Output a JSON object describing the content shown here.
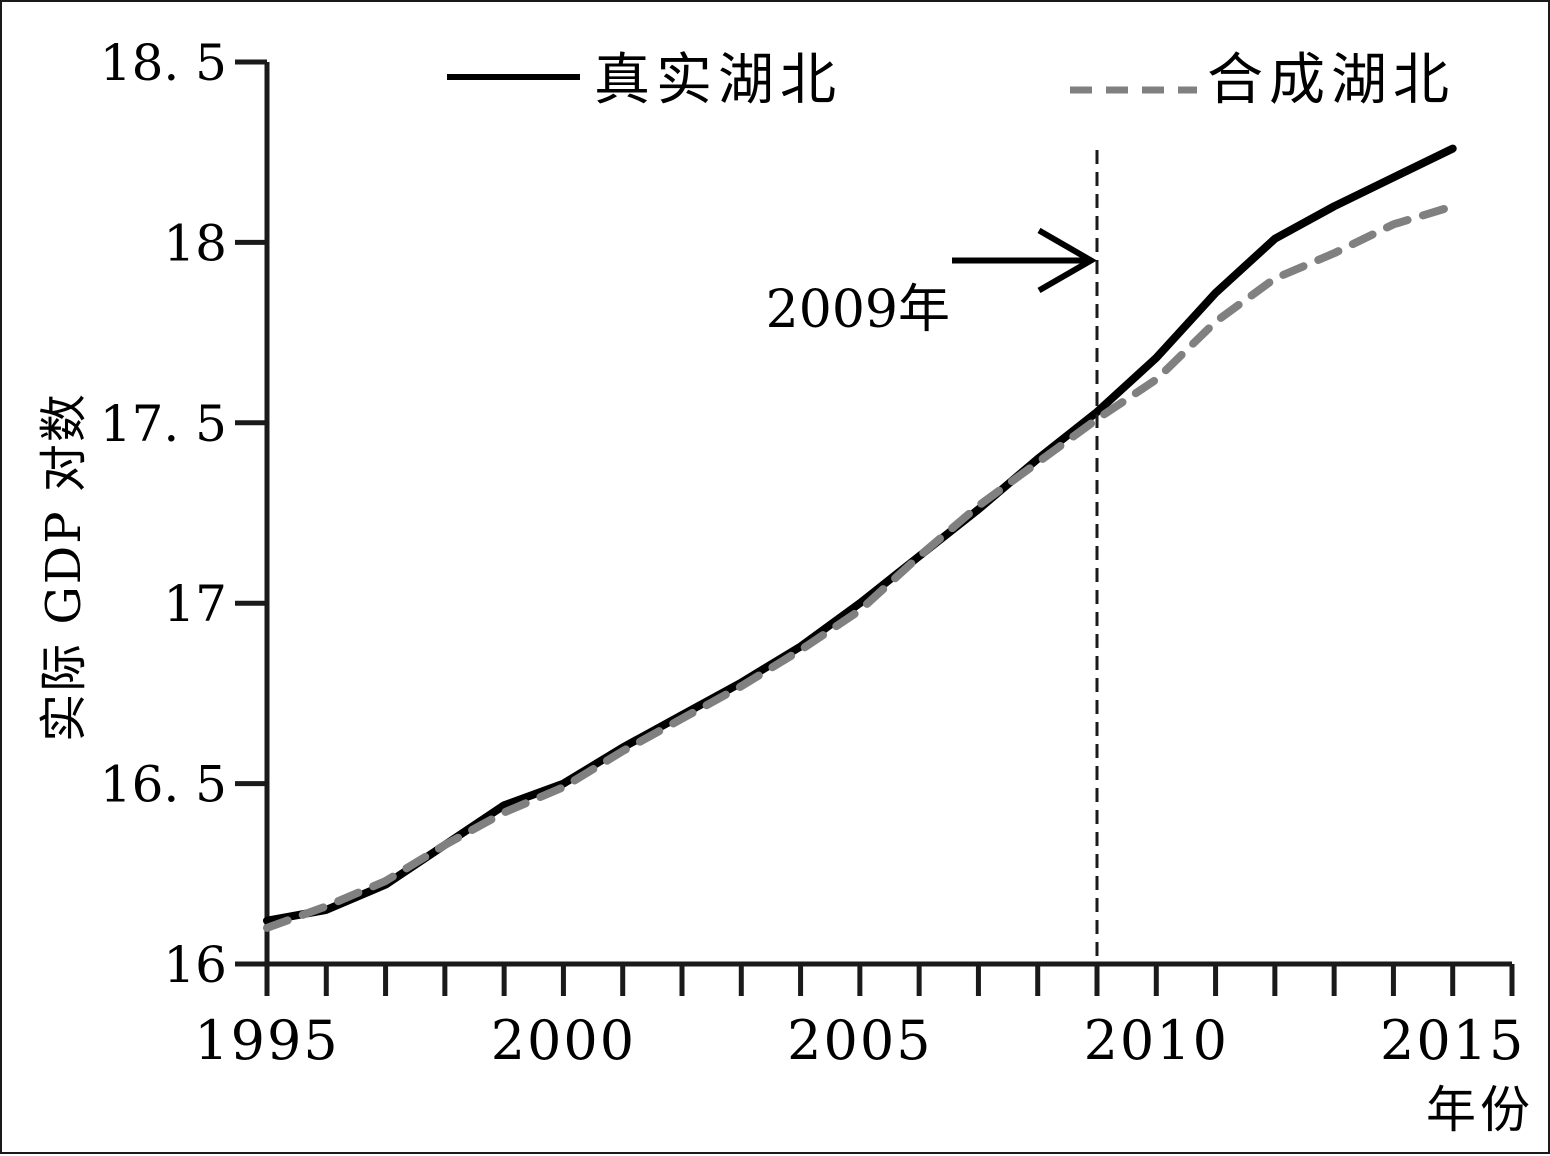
{
  "chart_data": {
    "type": "line",
    "title": "",
    "xlabel": "年份",
    "ylabel": "实际 GDP 对数",
    "x": [
      1995,
      1996,
      1997,
      1998,
      1999,
      2000,
      2001,
      2002,
      2003,
      2004,
      2005,
      2006,
      2007,
      2008,
      2009,
      2010,
      2011,
      2012,
      2013,
      2014,
      2015
    ],
    "series": [
      {
        "name": "真实湖北",
        "style": "solid",
        "color": "#000000",
        "values": [
          16.12,
          16.15,
          16.22,
          16.33,
          16.44,
          16.5,
          16.6,
          16.69,
          16.78,
          16.88,
          17.0,
          17.13,
          17.26,
          17.4,
          17.53,
          17.68,
          17.86,
          18.01,
          18.1,
          18.18,
          18.26
        ]
      },
      {
        "name": "合成湖北",
        "style": "dashed",
        "color": "#808080",
        "values": [
          16.1,
          16.16,
          16.23,
          16.33,
          16.42,
          16.49,
          16.59,
          16.68,
          16.77,
          16.87,
          16.98,
          17.13,
          17.27,
          17.39,
          17.51,
          17.62,
          17.78,
          17.9,
          17.97,
          18.05,
          18.1
        ]
      }
    ],
    "xlim": [
      1995,
      2016
    ],
    "ylim": [
      16,
      18.5
    ],
    "xticks": [
      1995,
      2000,
      2005,
      2010,
      2015
    ],
    "xtick_labels": [
      "1995",
      "2000",
      "2005",
      "2010",
      "2015"
    ],
    "yticks": [
      16,
      16.5,
      17,
      17.5,
      18,
      18.5
    ],
    "ytick_labels": [
      "16",
      "16. 5",
      "17",
      "17. 5",
      "18",
      "18. 5"
    ],
    "annotations": [
      {
        "text": "2009年",
        "x": 2009,
        "y": 17.95,
        "type": "vertical-dashed-line-with-arrow"
      }
    ],
    "legend_position": "top",
    "grid": false
  }
}
